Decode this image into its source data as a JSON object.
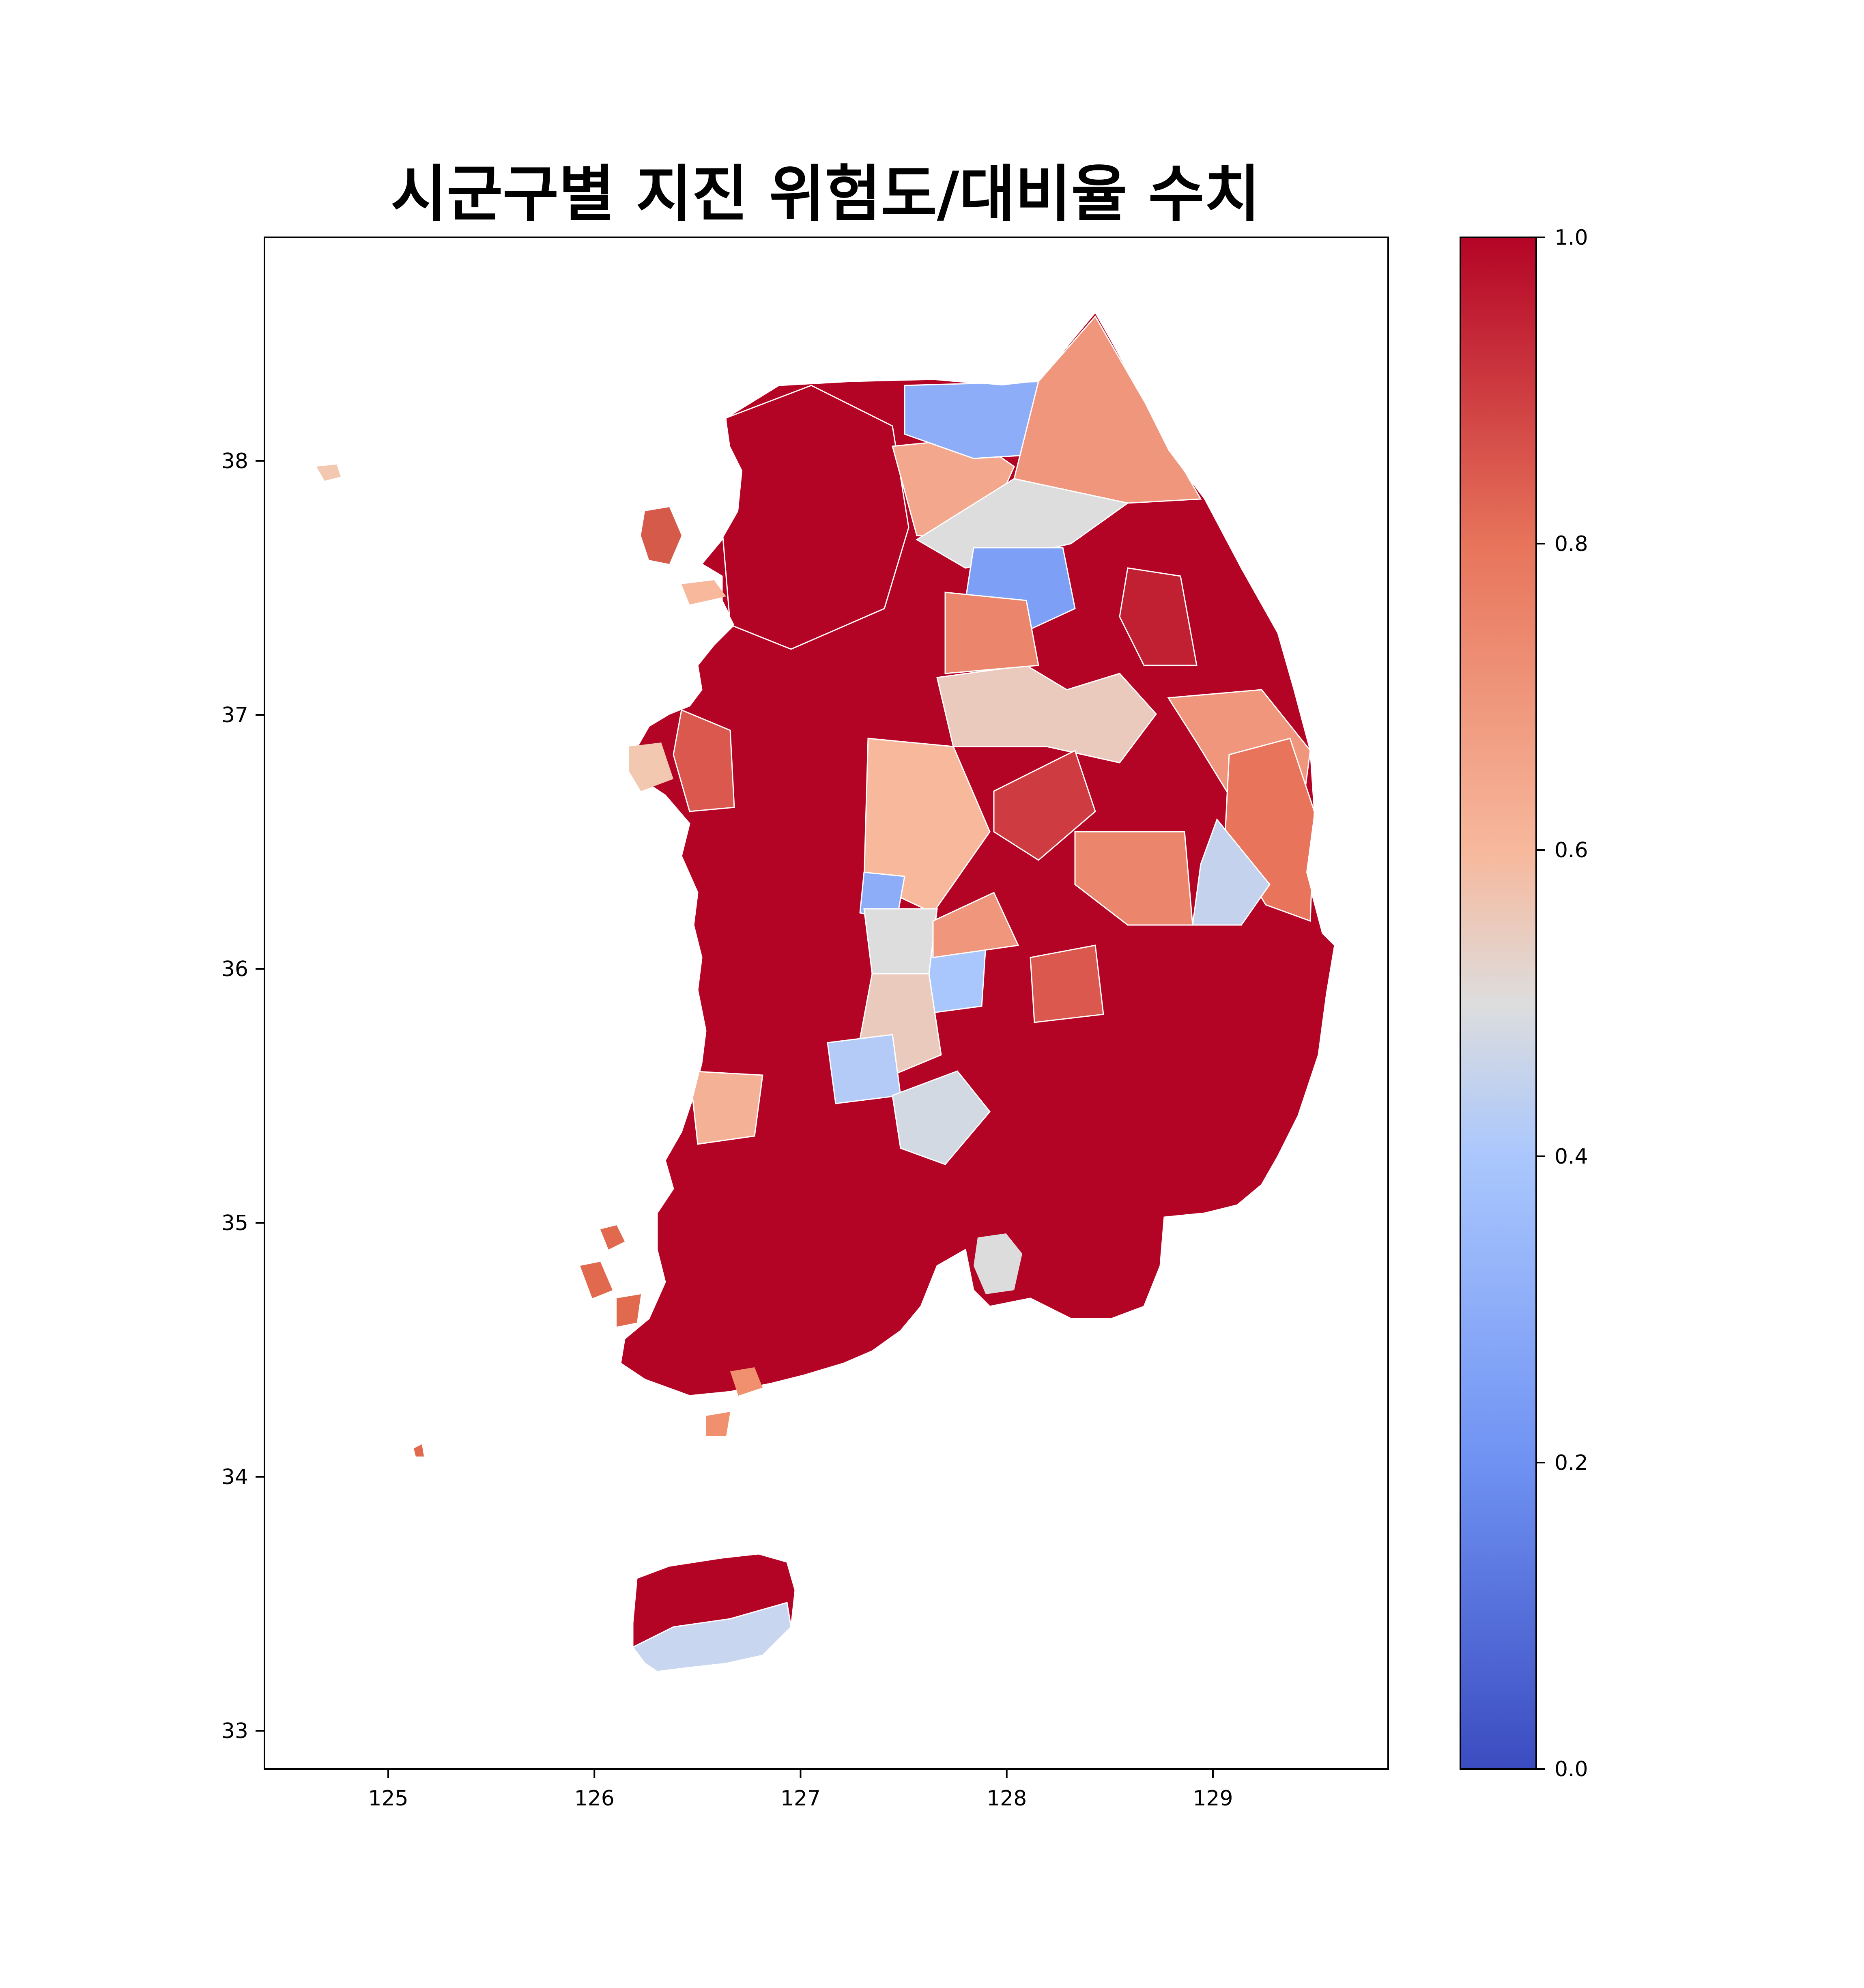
{
  "title": "시군구별 지진 위험도/대비율 수치",
  "map": {
    "x_ticks": [
      "125",
      "126",
      "127",
      "128",
      "129"
    ],
    "y_ticks": [
      "38",
      "37",
      "36",
      "35",
      "34",
      "33"
    ],
    "x_range": [
      124.4,
      129.85
    ],
    "y_range": [
      32.85,
      38.88
    ]
  },
  "colorbar": {
    "colormap": "coolwarm",
    "min_color": "#3b4cc0",
    "mid_color": "#dddddd",
    "max_color": "#b40426",
    "ticks": [
      "0.0",
      "0.2",
      "0.4",
      "0.6",
      "0.8",
      "1.0"
    ],
    "range": [
      0,
      1
    ]
  },
  "regions": [
    {
      "value": 1.0
    },
    {
      "value": 0.65
    },
    {
      "value": 0.3
    },
    {
      "value": 0.7
    },
    {
      "value": 0.5
    },
    {
      "value": 0.95
    },
    {
      "value": 0.7
    },
    {
      "value": 0.25
    },
    {
      "value": 0.55
    },
    {
      "value": 0.75
    },
    {
      "value": 0.9
    },
    {
      "value": 0.8
    },
    {
      "value": 0.45
    },
    {
      "value": 0.85
    },
    {
      "value": 0.6
    },
    {
      "value": 0.3
    },
    {
      "value": 0.75
    },
    {
      "value": 0.4
    },
    {
      "value": 0.5
    },
    {
      "value": 0.7
    },
    {
      "value": 0.55
    },
    {
      "value": 0.42
    },
    {
      "value": 0.48
    },
    {
      "value": 0.62
    },
    {
      "value": 0.85
    }
  ]
}
